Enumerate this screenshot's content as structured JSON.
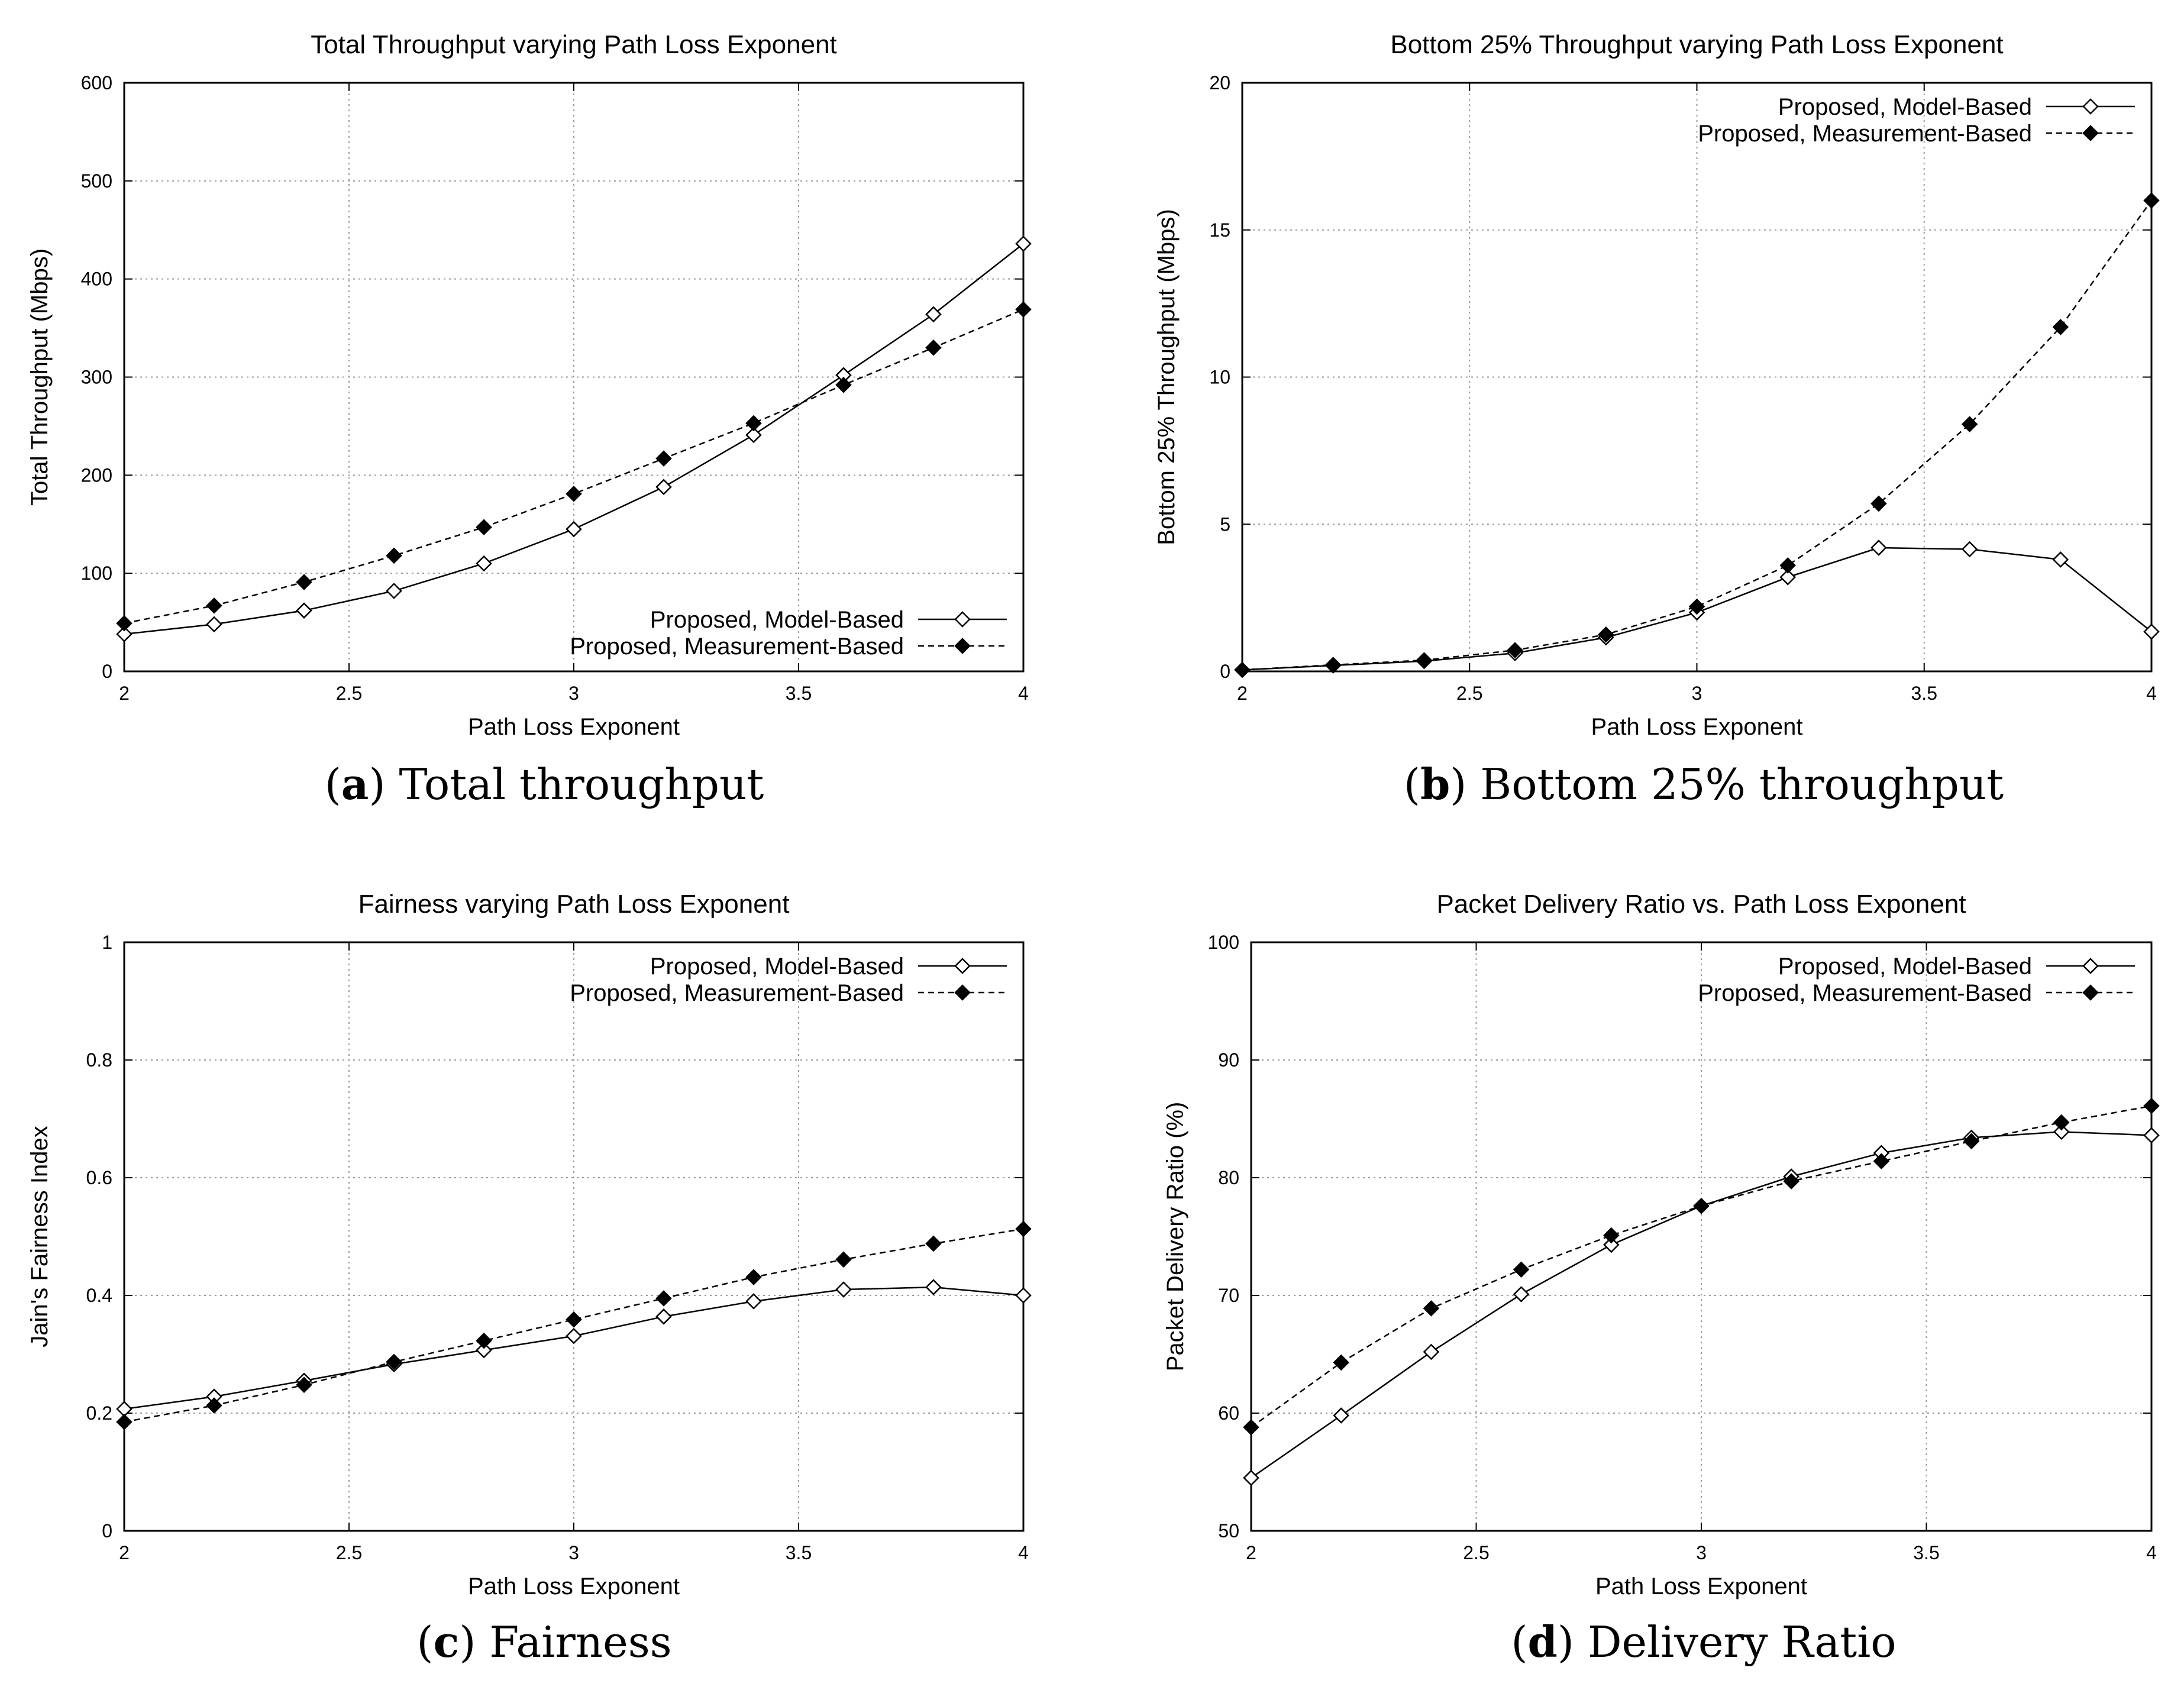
{
  "figure": {
    "captions": [
      {
        "letter": "a",
        "text": "Total throughput"
      },
      {
        "letter": "b",
        "text": "Bottom 25% throughput"
      },
      {
        "letter": "c",
        "text": "Fairness"
      },
      {
        "letter": "d",
        "text": "Delivery Ratio"
      }
    ]
  },
  "chart_data": [
    {
      "type": "line",
      "title": "Total Throughput varying Path Loss Exponent",
      "xlabel": "Path Loss Exponent",
      "ylabel": "Total Throughput (Mbps)",
      "xlim": [
        2,
        4
      ],
      "ylim": [
        0,
        600
      ],
      "xticks": [
        2,
        2.5,
        3,
        3.5,
        4
      ],
      "xtick_labels": [
        "2",
        "2.5",
        "3",
        "3.5",
        "4"
      ],
      "yticks": [
        0,
        100,
        200,
        300,
        400,
        500,
        600
      ],
      "ytick_labels": [
        "0",
        "100",
        "200",
        "300",
        "400",
        "500",
        "600"
      ],
      "grid": true,
      "legend_position": "bottom-right",
      "x": [
        2.0,
        2.2,
        2.4,
        2.6,
        2.8,
        3.0,
        3.2,
        3.4,
        3.6,
        3.8,
        4.0
      ],
      "series": [
        {
          "name": "Proposed, Model-Based",
          "style": "solid",
          "marker": "open-diamond",
          "values": [
            38,
            48,
            62,
            82,
            110,
            145,
            188,
            241,
            302,
            364,
            436
          ]
        },
        {
          "name": "Proposed, Measurement-Based",
          "style": "dashed",
          "marker": "filled-diamond",
          "values": [
            49,
            67,
            91,
            118,
            147,
            181,
            217,
            253,
            292,
            330,
            369
          ]
        }
      ]
    },
    {
      "type": "line",
      "title": "Bottom 25% Throughput varying Path Loss Exponent",
      "xlabel": "Path Loss Exponent",
      "ylabel": "Bottom 25% Throughput (Mbps)",
      "xlim": [
        2,
        4
      ],
      "ylim": [
        0,
        20
      ],
      "xticks": [
        2,
        2.5,
        3,
        3.5,
        4
      ],
      "xtick_labels": [
        "2",
        "2.5",
        "3",
        "3.5",
        "4"
      ],
      "yticks": [
        0,
        5,
        10,
        15,
        20
      ],
      "ytick_labels": [
        "0",
        "5",
        "10",
        "15",
        "20"
      ],
      "grid": true,
      "legend_position": "top-right",
      "x": [
        2.0,
        2.2,
        2.4,
        2.6,
        2.8,
        3.0,
        3.2,
        3.4,
        3.6,
        3.8,
        4.0
      ],
      "series": [
        {
          "name": "Proposed, Model-Based",
          "style": "solid",
          "marker": "open-diamond",
          "values": [
            0.05,
            0.2,
            0.35,
            0.62,
            1.15,
            2.0,
            3.2,
            4.2,
            4.15,
            3.8,
            1.35
          ]
        },
        {
          "name": "Proposed, Measurement-Based",
          "style": "dashed",
          "marker": "filled-diamond",
          "values": [
            0.05,
            0.22,
            0.38,
            0.72,
            1.25,
            2.2,
            3.6,
            5.7,
            8.4,
            11.7,
            16.0
          ]
        }
      ]
    },
    {
      "type": "line",
      "title": "Fairness varying Path Loss Exponent",
      "xlabel": "Path Loss Exponent",
      "ylabel": "Jain's Fairness Index",
      "xlim": [
        2,
        4
      ],
      "ylim": [
        0,
        1
      ],
      "xticks": [
        2,
        2.5,
        3,
        3.5,
        4
      ],
      "xtick_labels": [
        "2",
        "2.5",
        "3",
        "3.5",
        "4"
      ],
      "yticks": [
        0,
        0.2,
        0.4,
        0.6,
        0.8,
        1
      ],
      "ytick_labels": [
        "0",
        "0.2",
        "0.4",
        "0.6",
        "0.8",
        "1"
      ],
      "grid": true,
      "legend_position": "top-right",
      "x": [
        2.0,
        2.2,
        2.4,
        2.6,
        2.8,
        3.0,
        3.2,
        3.4,
        3.6,
        3.8,
        4.0
      ],
      "series": [
        {
          "name": "Proposed, Model-Based",
          "style": "solid",
          "marker": "open-diamond",
          "values": [
            0.207,
            0.228,
            0.255,
            0.283,
            0.307,
            0.331,
            0.364,
            0.39,
            0.41,
            0.414,
            0.4
          ]
        },
        {
          "name": "Proposed, Measurement-Based",
          "style": "dashed",
          "marker": "filled-diamond",
          "values": [
            0.185,
            0.213,
            0.248,
            0.287,
            0.323,
            0.359,
            0.395,
            0.431,
            0.461,
            0.488,
            0.513
          ]
        }
      ]
    },
    {
      "type": "line",
      "title": "Packet Delivery Ratio vs. Path Loss Exponent",
      "xlabel": "Path Loss Exponent",
      "ylabel": "Packet Delivery Ratio (%)",
      "xlim": [
        2,
        4
      ],
      "ylim": [
        50,
        100
      ],
      "xticks": [
        2,
        2.5,
        3,
        3.5,
        4
      ],
      "xtick_labels": [
        "2",
        "2.5",
        "3",
        "3.5",
        "4"
      ],
      "yticks": [
        50,
        60,
        70,
        80,
        90,
        100
      ],
      "ytick_labels": [
        "50",
        "60",
        "70",
        "80",
        "90",
        "100"
      ],
      "grid": true,
      "legend_position": "top-right",
      "x": [
        2.0,
        2.2,
        2.4,
        2.6,
        2.8,
        3.0,
        3.2,
        3.4,
        3.6,
        3.8,
        4.0
      ],
      "series": [
        {
          "name": "Proposed, Model-Based",
          "style": "solid",
          "marker": "open-diamond",
          "values": [
            54.5,
            59.8,
            65.2,
            70.1,
            74.3,
            77.6,
            80.1,
            82.1,
            83.4,
            83.9,
            83.6
          ]
        },
        {
          "name": "Proposed, Measurement-Based",
          "style": "dashed",
          "marker": "filled-diamond",
          "values": [
            58.8,
            64.3,
            68.9,
            72.2,
            75.1,
            77.6,
            79.7,
            81.4,
            83.1,
            84.7,
            86.1
          ]
        }
      ]
    }
  ]
}
